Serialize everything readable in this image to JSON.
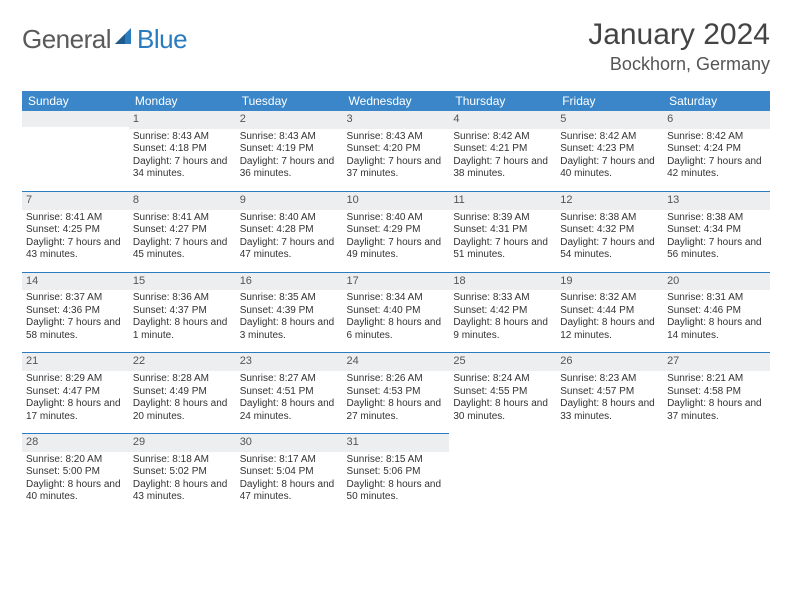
{
  "brand": {
    "part1": "General",
    "part2": "Blue"
  },
  "title": "January 2024",
  "location": "Bockhorn, Germany",
  "colors": {
    "header_bg": "#3a86c8",
    "header_text": "#ffffff",
    "daynum_bg": "#eceef0",
    "row_border": "#2b7bbf",
    "text": "#333333",
    "brand_gray": "#5a5a5a",
    "brand_blue": "#2b7bbf"
  },
  "typography": {
    "title_fontsize": 30,
    "location_fontsize": 18,
    "header_fontsize": 12,
    "daynum_fontsize": 11,
    "body_fontsize": 10
  },
  "layout": {
    "columns": 7,
    "rows": 5
  },
  "weekdays": [
    "Sunday",
    "Monday",
    "Tuesday",
    "Wednesday",
    "Thursday",
    "Friday",
    "Saturday"
  ],
  "weeks": [
    [
      {
        "empty": true
      },
      {
        "day": "1",
        "sunrise": "Sunrise: 8:43 AM",
        "sunset": "Sunset: 4:18 PM",
        "daylight": "Daylight: 7 hours and 34 minutes."
      },
      {
        "day": "2",
        "sunrise": "Sunrise: 8:43 AM",
        "sunset": "Sunset: 4:19 PM",
        "daylight": "Daylight: 7 hours and 36 minutes."
      },
      {
        "day": "3",
        "sunrise": "Sunrise: 8:43 AM",
        "sunset": "Sunset: 4:20 PM",
        "daylight": "Daylight: 7 hours and 37 minutes."
      },
      {
        "day": "4",
        "sunrise": "Sunrise: 8:42 AM",
        "sunset": "Sunset: 4:21 PM",
        "daylight": "Daylight: 7 hours and 38 minutes."
      },
      {
        "day": "5",
        "sunrise": "Sunrise: 8:42 AM",
        "sunset": "Sunset: 4:23 PM",
        "daylight": "Daylight: 7 hours and 40 minutes."
      },
      {
        "day": "6",
        "sunrise": "Sunrise: 8:42 AM",
        "sunset": "Sunset: 4:24 PM",
        "daylight": "Daylight: 7 hours and 42 minutes."
      }
    ],
    [
      {
        "day": "7",
        "sunrise": "Sunrise: 8:41 AM",
        "sunset": "Sunset: 4:25 PM",
        "daylight": "Daylight: 7 hours and 43 minutes."
      },
      {
        "day": "8",
        "sunrise": "Sunrise: 8:41 AM",
        "sunset": "Sunset: 4:27 PM",
        "daylight": "Daylight: 7 hours and 45 minutes."
      },
      {
        "day": "9",
        "sunrise": "Sunrise: 8:40 AM",
        "sunset": "Sunset: 4:28 PM",
        "daylight": "Daylight: 7 hours and 47 minutes."
      },
      {
        "day": "10",
        "sunrise": "Sunrise: 8:40 AM",
        "sunset": "Sunset: 4:29 PM",
        "daylight": "Daylight: 7 hours and 49 minutes."
      },
      {
        "day": "11",
        "sunrise": "Sunrise: 8:39 AM",
        "sunset": "Sunset: 4:31 PM",
        "daylight": "Daylight: 7 hours and 51 minutes."
      },
      {
        "day": "12",
        "sunrise": "Sunrise: 8:38 AM",
        "sunset": "Sunset: 4:32 PM",
        "daylight": "Daylight: 7 hours and 54 minutes."
      },
      {
        "day": "13",
        "sunrise": "Sunrise: 8:38 AM",
        "sunset": "Sunset: 4:34 PM",
        "daylight": "Daylight: 7 hours and 56 minutes."
      }
    ],
    [
      {
        "day": "14",
        "sunrise": "Sunrise: 8:37 AM",
        "sunset": "Sunset: 4:36 PM",
        "daylight": "Daylight: 7 hours and 58 minutes."
      },
      {
        "day": "15",
        "sunrise": "Sunrise: 8:36 AM",
        "sunset": "Sunset: 4:37 PM",
        "daylight": "Daylight: 8 hours and 1 minute."
      },
      {
        "day": "16",
        "sunrise": "Sunrise: 8:35 AM",
        "sunset": "Sunset: 4:39 PM",
        "daylight": "Daylight: 8 hours and 3 minutes."
      },
      {
        "day": "17",
        "sunrise": "Sunrise: 8:34 AM",
        "sunset": "Sunset: 4:40 PM",
        "daylight": "Daylight: 8 hours and 6 minutes."
      },
      {
        "day": "18",
        "sunrise": "Sunrise: 8:33 AM",
        "sunset": "Sunset: 4:42 PM",
        "daylight": "Daylight: 8 hours and 9 minutes."
      },
      {
        "day": "19",
        "sunrise": "Sunrise: 8:32 AM",
        "sunset": "Sunset: 4:44 PM",
        "daylight": "Daylight: 8 hours and 12 minutes."
      },
      {
        "day": "20",
        "sunrise": "Sunrise: 8:31 AM",
        "sunset": "Sunset: 4:46 PM",
        "daylight": "Daylight: 8 hours and 14 minutes."
      }
    ],
    [
      {
        "day": "21",
        "sunrise": "Sunrise: 8:29 AM",
        "sunset": "Sunset: 4:47 PM",
        "daylight": "Daylight: 8 hours and 17 minutes."
      },
      {
        "day": "22",
        "sunrise": "Sunrise: 8:28 AM",
        "sunset": "Sunset: 4:49 PM",
        "daylight": "Daylight: 8 hours and 20 minutes."
      },
      {
        "day": "23",
        "sunrise": "Sunrise: 8:27 AM",
        "sunset": "Sunset: 4:51 PM",
        "daylight": "Daylight: 8 hours and 24 minutes."
      },
      {
        "day": "24",
        "sunrise": "Sunrise: 8:26 AM",
        "sunset": "Sunset: 4:53 PM",
        "daylight": "Daylight: 8 hours and 27 minutes."
      },
      {
        "day": "25",
        "sunrise": "Sunrise: 8:24 AM",
        "sunset": "Sunset: 4:55 PM",
        "daylight": "Daylight: 8 hours and 30 minutes."
      },
      {
        "day": "26",
        "sunrise": "Sunrise: 8:23 AM",
        "sunset": "Sunset: 4:57 PM",
        "daylight": "Daylight: 8 hours and 33 minutes."
      },
      {
        "day": "27",
        "sunrise": "Sunrise: 8:21 AM",
        "sunset": "Sunset: 4:58 PM",
        "daylight": "Daylight: 8 hours and 37 minutes."
      }
    ],
    [
      {
        "day": "28",
        "sunrise": "Sunrise: 8:20 AM",
        "sunset": "Sunset: 5:00 PM",
        "daylight": "Daylight: 8 hours and 40 minutes."
      },
      {
        "day": "29",
        "sunrise": "Sunrise: 8:18 AM",
        "sunset": "Sunset: 5:02 PM",
        "daylight": "Daylight: 8 hours and 43 minutes."
      },
      {
        "day": "30",
        "sunrise": "Sunrise: 8:17 AM",
        "sunset": "Sunset: 5:04 PM",
        "daylight": "Daylight: 8 hours and 47 minutes."
      },
      {
        "day": "31",
        "sunrise": "Sunrise: 8:15 AM",
        "sunset": "Sunset: 5:06 PM",
        "daylight": "Daylight: 8 hours and 50 minutes."
      },
      {
        "empty": true
      },
      {
        "empty": true
      },
      {
        "empty": true
      }
    ]
  ]
}
